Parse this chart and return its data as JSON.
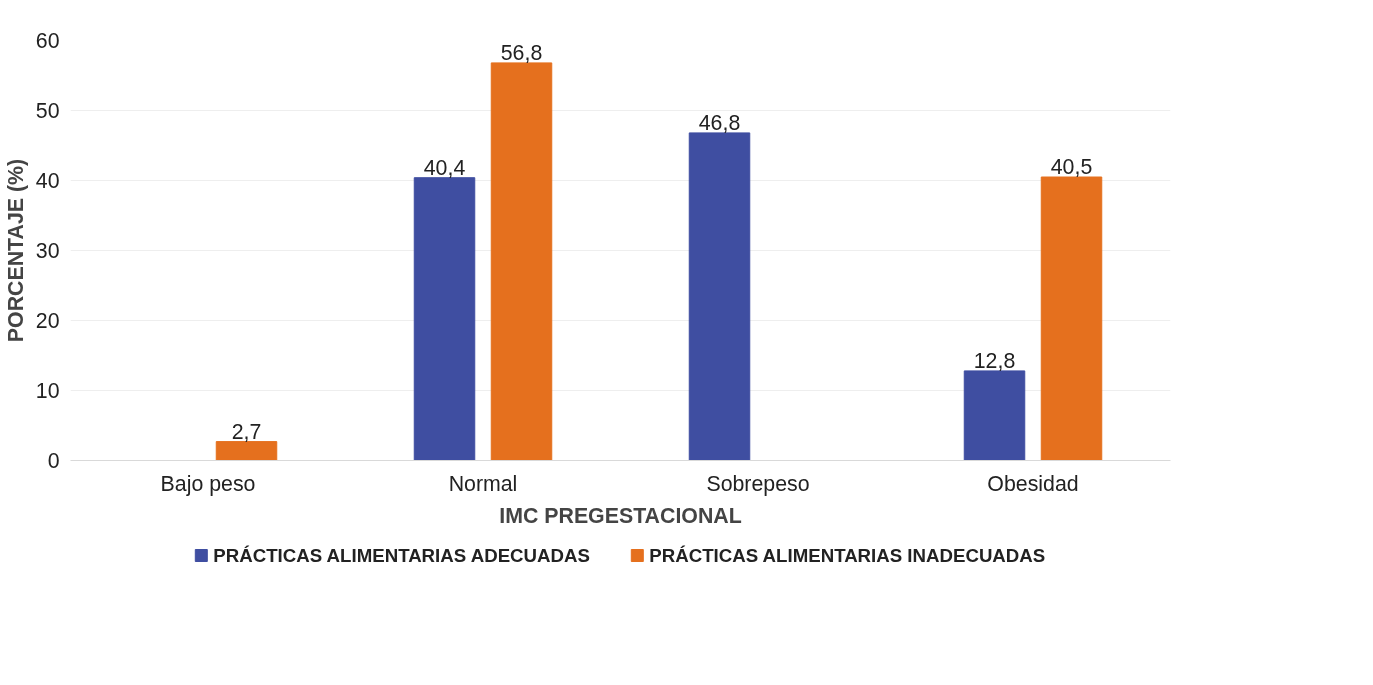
{
  "chart_data": {
    "type": "bar",
    "xlabel": "IMC PREGESTACIONAL",
    "ylabel": "PORCENTAJE (%)",
    "categories": [
      "Bajo peso",
      "Normal",
      "Sobrepeso",
      "Obesidad"
    ],
    "series": [
      {
        "name": "PRÁCTICAS ALIMENTARIAS ADECUADAS",
        "color": "#3f4ea1",
        "values": [
          null,
          40.4,
          46.8,
          12.8
        ],
        "value_labels": [
          null,
          "40,4",
          "46,8",
          "12,8"
        ]
      },
      {
        "name": "PRÁCTICAS ALIMENTARIAS INADECUADAS",
        "color": "#e5701e",
        "values": [
          2.7,
          56.8,
          null,
          40.5
        ],
        "value_labels": [
          "2,7",
          "56,8",
          null,
          "40,5"
        ]
      }
    ],
    "ylim": [
      0,
      60
    ],
    "yticks": [
      0,
      10,
      20,
      30,
      40,
      50,
      60
    ],
    "grid": "y",
    "legend": "bottom"
  }
}
